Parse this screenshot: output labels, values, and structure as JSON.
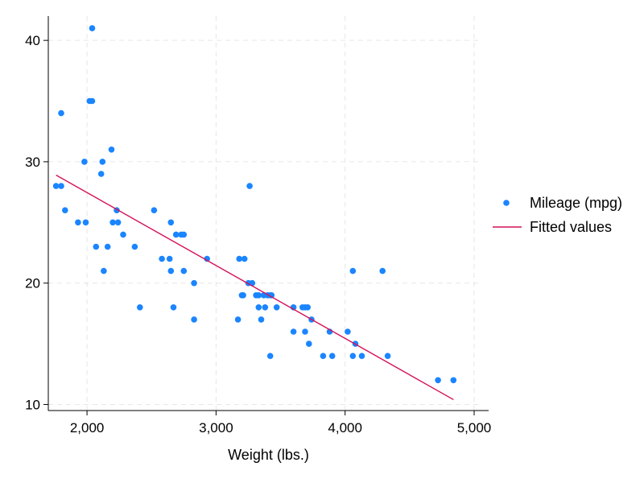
{
  "chart_data": {
    "type": "scatter",
    "title": "",
    "xlabel": "Weight (lbs.)",
    "ylabel": "",
    "xlim": [
      1700,
      5050
    ],
    "ylim": [
      9.5,
      42
    ],
    "x_ticks": [
      2000,
      3000,
      4000,
      5000
    ],
    "x_tick_labels": [
      "2,000",
      "3,000",
      "4,000",
      "5,000"
    ],
    "y_ticks": [
      10,
      20,
      30,
      40
    ],
    "y_tick_labels": [
      "10",
      "20",
      "30",
      "40"
    ],
    "grid": true,
    "legend_position": "right",
    "colors": {
      "scatter": "#1a85ff",
      "fit": "#d41159",
      "grid": "#e6e6e6",
      "axis": "#000000"
    },
    "series": [
      {
        "name": "Mileage (mpg)",
        "kind": "scatter",
        "points": [
          [
            1760,
            28
          ],
          [
            1800,
            28
          ],
          [
            1800,
            34
          ],
          [
            1830,
            26
          ],
          [
            1930,
            25
          ],
          [
            1980,
            30
          ],
          [
            1990,
            25
          ],
          [
            2020,
            35
          ],
          [
            2040,
            35
          ],
          [
            2040,
            41
          ],
          [
            2070,
            23
          ],
          [
            2110,
            29
          ],
          [
            2120,
            30
          ],
          [
            2130,
            21
          ],
          [
            2160,
            23
          ],
          [
            2190,
            31
          ],
          [
            2200,
            25
          ],
          [
            2230,
            26
          ],
          [
            2240,
            25
          ],
          [
            2280,
            24
          ],
          [
            2370,
            23
          ],
          [
            2410,
            18
          ],
          [
            2520,
            26
          ],
          [
            2580,
            22
          ],
          [
            2640,
            22
          ],
          [
            2650,
            21
          ],
          [
            2650,
            25
          ],
          [
            2670,
            18
          ],
          [
            2690,
            24
          ],
          [
            2730,
            24
          ],
          [
            2750,
            21
          ],
          [
            2750,
            24
          ],
          [
            2830,
            20
          ],
          [
            2830,
            17
          ],
          [
            2930,
            22
          ],
          [
            3170,
            17
          ],
          [
            3180,
            22
          ],
          [
            3200,
            19
          ],
          [
            3210,
            19
          ],
          [
            3220,
            22
          ],
          [
            3250,
            20
          ],
          [
            3260,
            28
          ],
          [
            3280,
            20
          ],
          [
            3310,
            19
          ],
          [
            3330,
            19
          ],
          [
            3330,
            18
          ],
          [
            3350,
            17
          ],
          [
            3370,
            19
          ],
          [
            3380,
            18
          ],
          [
            3400,
            19
          ],
          [
            3420,
            14
          ],
          [
            3420,
            19
          ],
          [
            3430,
            19
          ],
          [
            3470,
            18
          ],
          [
            3600,
            16
          ],
          [
            3600,
            18
          ],
          [
            3670,
            18
          ],
          [
            3690,
            16
          ],
          [
            3690,
            18
          ],
          [
            3710,
            18
          ],
          [
            3720,
            15
          ],
          [
            3740,
            17
          ],
          [
            3830,
            14
          ],
          [
            3880,
            16
          ],
          [
            3900,
            14
          ],
          [
            4020,
            16
          ],
          [
            4060,
            21
          ],
          [
            4060,
            14
          ],
          [
            4080,
            15
          ],
          [
            4130,
            14
          ],
          [
            4290,
            21
          ],
          [
            4330,
            14
          ],
          [
            4720,
            12
          ],
          [
            4840,
            12
          ]
        ]
      },
      {
        "name": "Fitted values",
        "kind": "line",
        "points": [
          [
            1760,
            28.9
          ],
          [
            4840,
            10.4
          ]
        ]
      }
    ]
  }
}
